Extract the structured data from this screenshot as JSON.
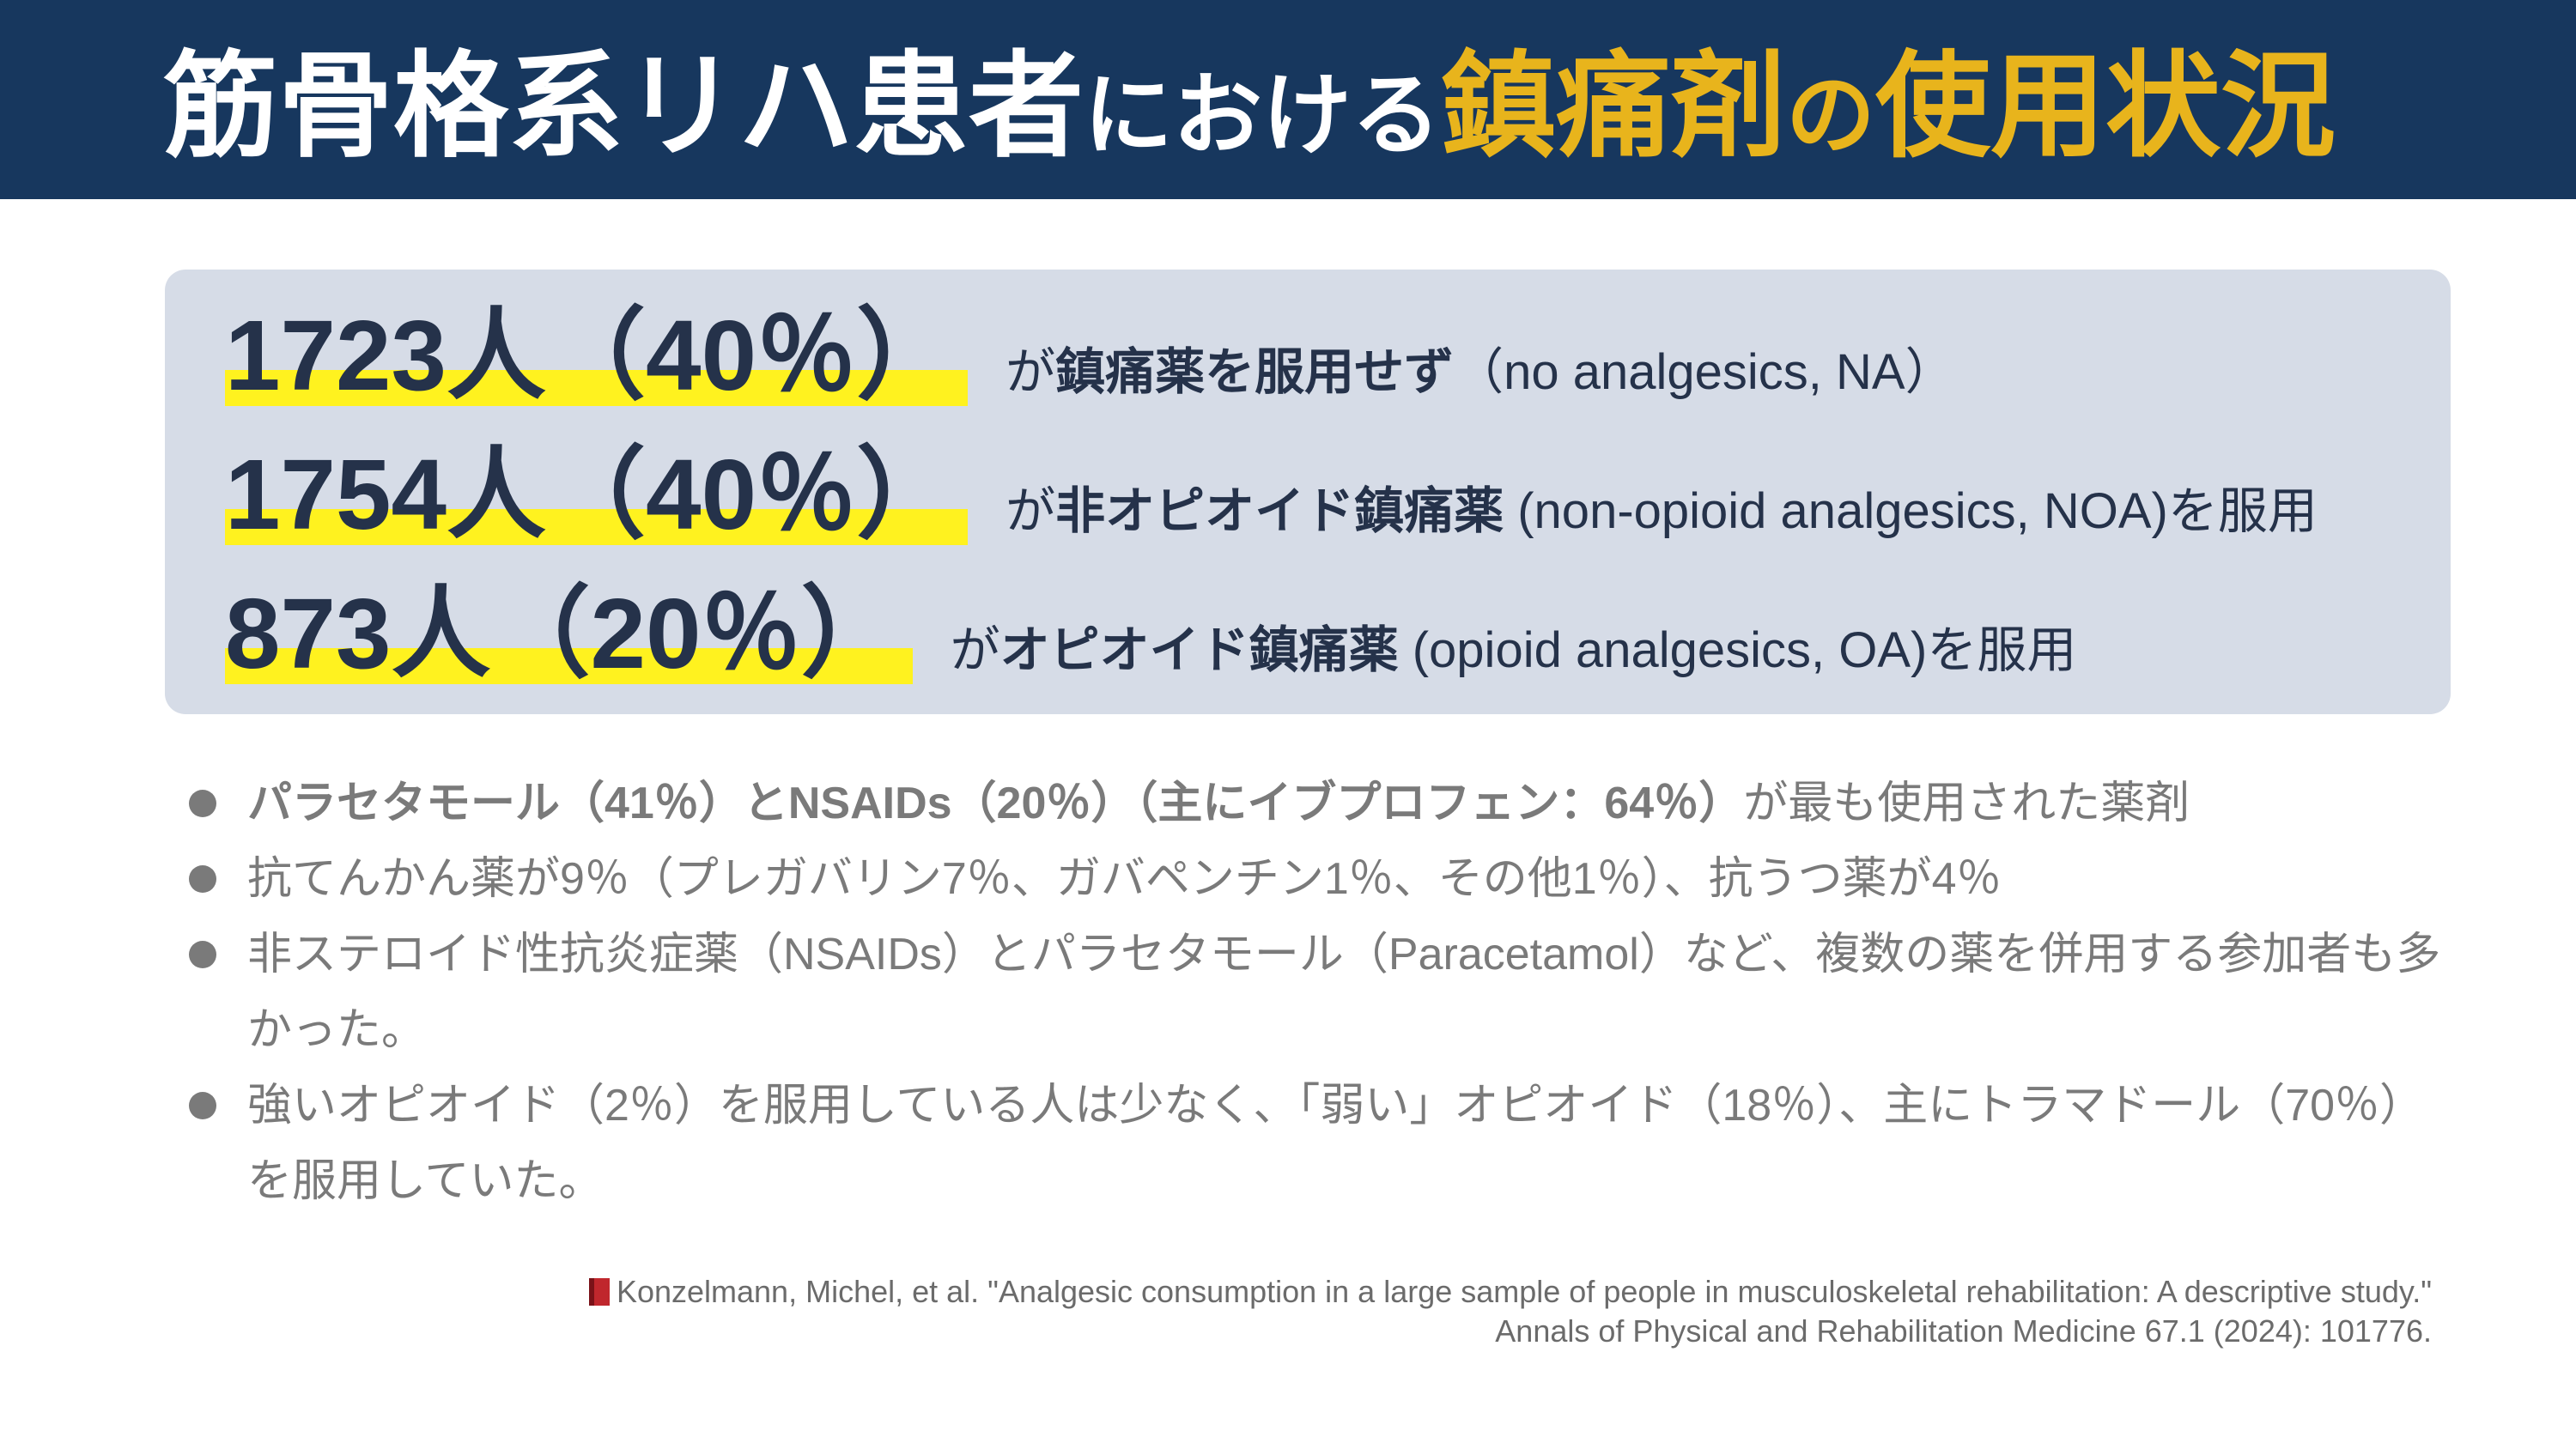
{
  "header": {
    "title_part1": "筋骨格系リハ患者",
    "title_part2": "における",
    "title_part3": "鎮痛剤",
    "title_part4": "の",
    "title_part5": "使用状況"
  },
  "stats": [
    {
      "number": "1723人（40％）",
      "prefix": "が",
      "bold": "鎮痛薬を服用せず",
      "suffix": "（no analgesics, NA）"
    },
    {
      "number": "1754人（40％）",
      "prefix": "が",
      "bold": "非オピオイド鎮痛薬",
      "suffix": " (non-opioid analgesics, NOA)を服用"
    },
    {
      "number": "873人（20％）",
      "prefix": "が",
      "bold": "オピオイド鎮痛薬",
      "suffix": " (opioid analgesics, OA)を服用"
    }
  ],
  "bullets": {
    "b0_bold": "パラセタモール（41％）とNSAIDs（20％）（主にイブプロフェン：64％）",
    "b0_rest": "が最も使用された薬剤",
    "b1": "抗てんかん薬が9％（プレガバリン7％、ガバペンチン1％、その他1％）、抗うつ薬が4％",
    "b2": "非ステロイド性抗炎症薬（NSAIDs）とパラセタモール（Paracetamol）など、複数の薬を併用する参加者も多かった。",
    "b3": "強いオピオイド（2％）を服用している人は少なく、「弱い」オピオイド（18％）、主にトラマドール（70％）を服用していた。"
  },
  "citation": {
    "line1": "Konzelmann, Michel, et al. \"Analgesic consumption in a large sample of people in musculoskeletal rehabilitation: A descriptive study.\"",
    "line2": "Annals of Physical and Rehabilitation Medicine 67.1 (2024): 101776."
  },
  "colors": {
    "header_bg": "#17375e",
    "accent": "#e8b41c",
    "panel_bg": "#d6dce7",
    "highlight": "#fff21f",
    "body_text": "#7a7a7a"
  },
  "icons": {
    "citation_icon": "book-icon"
  }
}
